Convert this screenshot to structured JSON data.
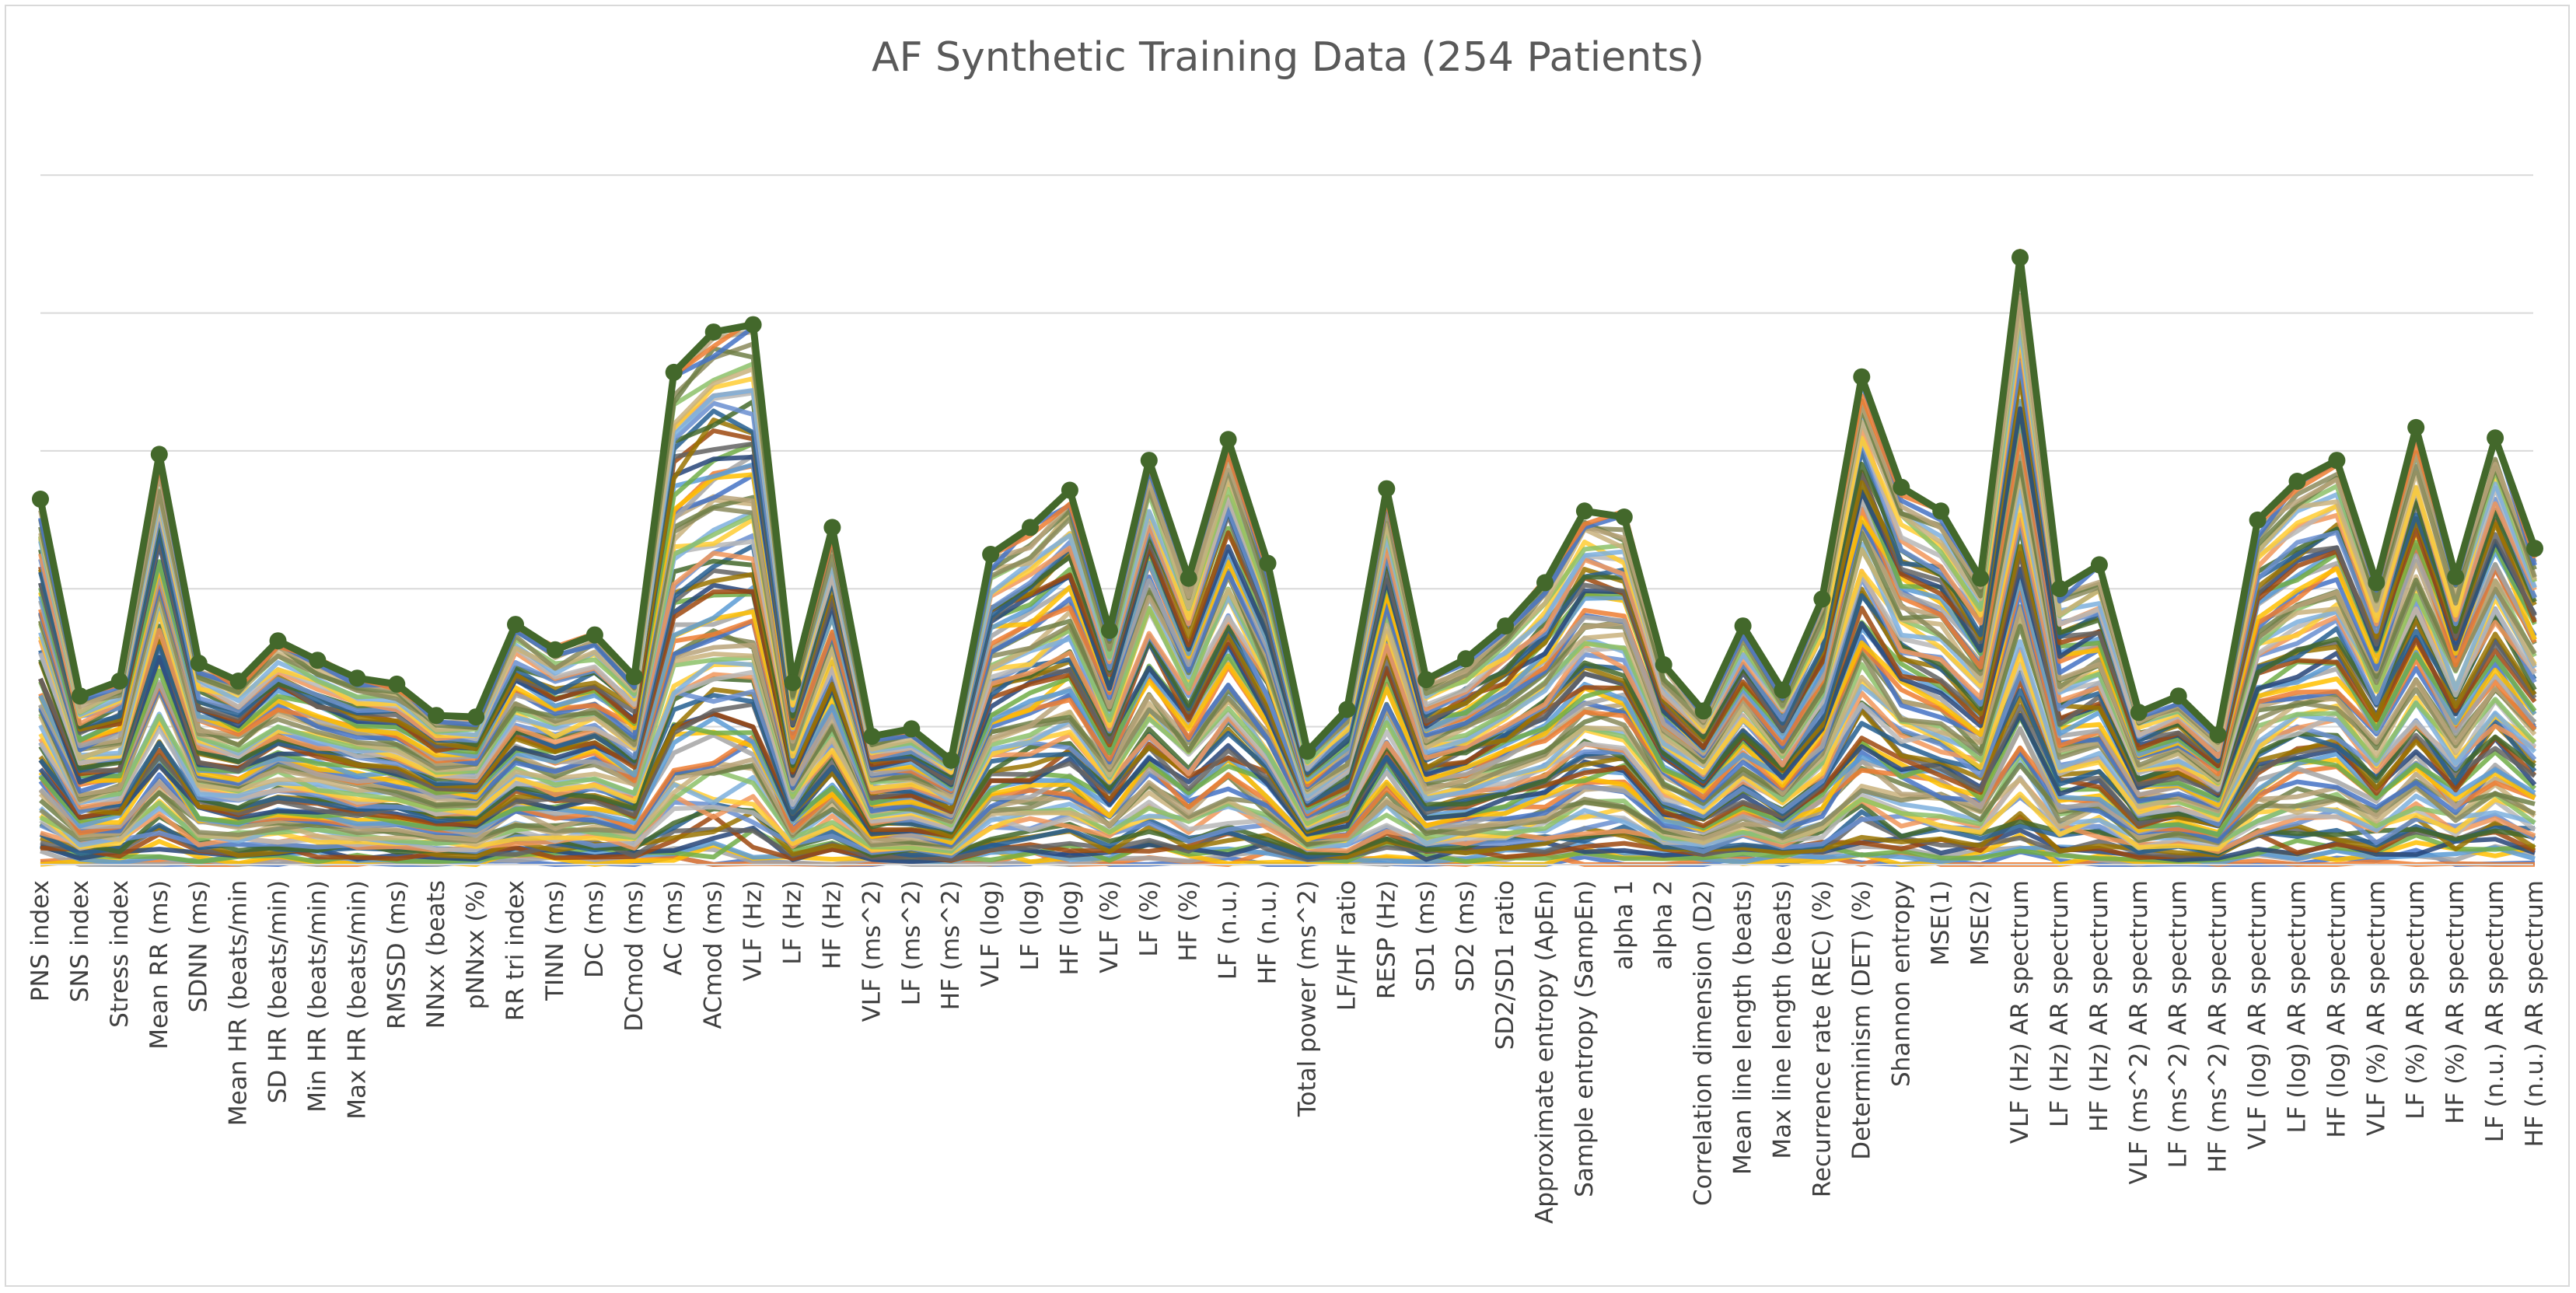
{
  "chart_data": {
    "type": "line",
    "title": "AF Synthetic Training Data (254 Patients)",
    "xlabel": "",
    "ylabel": "",
    "ylim": [
      0,
      5
    ],
    "grid": "horizontal",
    "legend": "none",
    "series_count_visible_note": "",
    "categories": [
      "PNS index",
      "SNS index",
      "Stress index",
      "Mean RR  (ms)",
      "SDNN (ms)",
      "Mean HR (beats/min",
      "SD HR (beats/min)",
      "Min HR (beats/min)",
      "Max HR (beats/min)",
      "RMSSD (ms)",
      "NNxx (beats",
      "pNNxx (%)",
      "RR tri index",
      "TINN (ms)",
      "DC (ms)",
      "DCmod (ms)",
      "AC (ms)",
      "ACmod (ms)",
      "VLF (Hz)",
      "LF (Hz)",
      "HF (Hz)",
      "VLF (ms^2)",
      "LF (ms^2)",
      "HF (ms^2)",
      "VLF (log)",
      "LF (log)",
      "HF (log)",
      "VLF (%)",
      "LF (%)",
      "HF (%)",
      "LF (n.u.)",
      "HF (n.u.)",
      "Total power (ms^2)",
      "LF/HF ratio",
      "RESP (Hz)",
      "SD1 (ms)",
      "SD2 (ms)",
      "SD2/SD1 ratio",
      "Approximate entropy (ApEn)",
      "Sample entropy (SampEn)",
      "alpha 1",
      "alpha 2",
      "Correlation dimension (D2)",
      "Mean line length (beats)",
      "Max line length (beats)",
      "Recurrence rate (REC) (%)",
      "Determinism (DET) (%)",
      "Shannon entropy",
      "MSE(1)",
      "MSE(2)",
      "VLF (Hz) AR spectrum",
      "LF (Hz) AR spectrum",
      "HF (Hz) AR spectrum",
      "VLF (ms^2) AR spectrum",
      "LF (ms^2) AR spectrum",
      "HF (ms^2) AR spectrum",
      "VLF (log) AR spectrum",
      "LF (log) AR spectrum",
      "HF (log) AR spectrum",
      "VLF (%) AR spectrum",
      "LF (%) AR spectrum",
      "HF (%) AR spectrum",
      "LF (n.u.) AR spectrum",
      "HF (n.u.) AR spectrum"
    ],
    "top_envelope": [
      2.45,
      1.13,
      1.23,
      2.75,
      1.35,
      1.23,
      1.5,
      1.37,
      1.25,
      1.21,
      1.0,
      0.99,
      1.61,
      1.44,
      1.54,
      1.26,
      3.3,
      3.57,
      3.62,
      1.22,
      2.26,
      0.86,
      0.91,
      0.7,
      2.08,
      2.26,
      2.51,
      1.57,
      2.71,
      1.92,
      2.85,
      2.02,
      0.76,
      1.04,
      2.52,
      1.24,
      1.38,
      1.6,
      1.89,
      2.37,
      2.33,
      1.34,
      1.03,
      1.6,
      1.17,
      1.78,
      3.27,
      2.53,
      2.37,
      1.92,
      4.07,
      1.85,
      2.01,
      1.02,
      1.13,
      0.87,
      2.31,
      2.57,
      2.71,
      1.89,
      2.93,
      1.93,
      2.86,
      2.12
    ],
    "series_colors": [
      "#4472c4",
      "#ed7d31",
      "#a5a5a5",
      "#ffc000",
      "#5b9bd5",
      "#70ad47",
      "#264478",
      "#9e480e",
      "#636363",
      "#997300",
      "#255e91",
      "#43682b",
      "#698ed0",
      "#f1975a",
      "#b7b7b7",
      "#ffcd33",
      "#7cafdd",
      "#8cc168",
      "#c9b27c",
      "#8a8a5c",
      "#6e7f46",
      "#b9a37a"
    ],
    "top_series_color": "#43682b"
  }
}
